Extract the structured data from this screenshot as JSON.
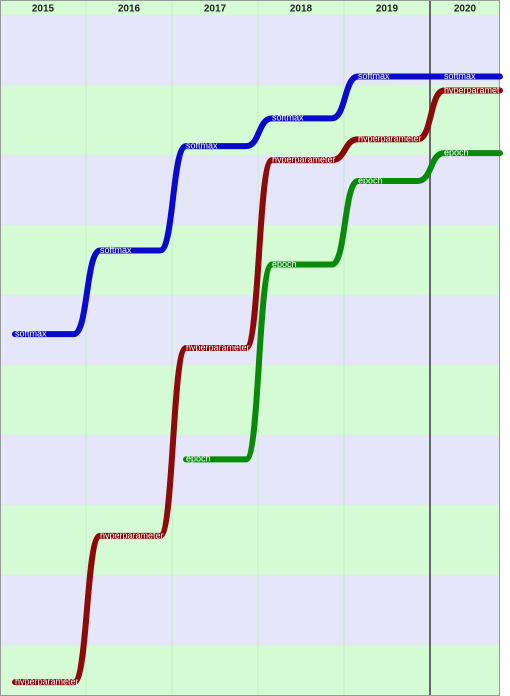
{
  "chart_data": {
    "type": "bump",
    "categories": [
      "2015",
      "2016",
      "2017",
      "2018",
      "2019",
      "2020"
    ],
    "ylim": [
      0,
      10
    ],
    "inverted": true,
    "series": [
      {
        "name": "softmax",
        "color": "#0a0acc",
        "values": [
          4.8,
          3.6,
          2.1,
          1.7,
          1.1,
          1.1
        ]
      },
      {
        "name": "hyperparameter",
        "color": "#8b0a0a",
        "values": [
          9.8,
          7.7,
          5.0,
          2.3,
          2.0,
          1.3
        ]
      },
      {
        "name": "epoch",
        "color": "#0a8a0a",
        "values": [
          null,
          null,
          6.6,
          3.8,
          2.6,
          2.2
        ]
      }
    ]
  }
}
